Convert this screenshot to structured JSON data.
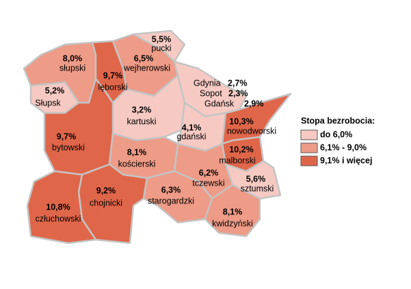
{
  "map": {
    "regions": [
      {
        "name": "pucki",
        "value": 5.5,
        "value_label": "5,5%"
      },
      {
        "name": "słupski",
        "value": 8.0,
        "value_label": "8,0%"
      },
      {
        "name": "wejherowski",
        "value": 6.5,
        "value_label": "6,5%"
      },
      {
        "name": "lęborski",
        "value": 9.7,
        "value_label": "9,7%"
      },
      {
        "name": "Słupsk",
        "value": 5.2,
        "value_label": "5,2%"
      },
      {
        "name": "Gdynia",
        "value": 2.7,
        "value_label": "2,7%"
      },
      {
        "name": "Sopot",
        "value": 2.3,
        "value_label": "2,3%"
      },
      {
        "name": "Gdańsk",
        "value": 2.9,
        "value_label": "2,9%"
      },
      {
        "name": "kartuski",
        "value": 3.2,
        "value_label": "3,2%"
      },
      {
        "name": "gdański",
        "value": 4.1,
        "value_label": "4,1%"
      },
      {
        "name": "nowodworski",
        "value": 10.3,
        "value_label": "10,3%"
      },
      {
        "name": "bytowski",
        "value": 9.7,
        "value_label": "9,7%"
      },
      {
        "name": "kościerski",
        "value": 8.1,
        "value_label": "8,1%"
      },
      {
        "name": "malborski",
        "value": 10.2,
        "value_label": "10,2%"
      },
      {
        "name": "tczewski",
        "value": 6.2,
        "value_label": "6,2%"
      },
      {
        "name": "sztumski",
        "value": 5.6,
        "value_label": "5,6%"
      },
      {
        "name": "chojnicki",
        "value": 9.2,
        "value_label": "9,2%"
      },
      {
        "name": "starogardzki",
        "value": 6.3,
        "value_label": "6,3%"
      },
      {
        "name": "człuchowski",
        "value": 10.8,
        "value_label": "10,8%"
      },
      {
        "name": "kwidzyński",
        "value": 8.1,
        "value_label": "8,1%"
      }
    ],
    "legend": {
      "title": "Stopa bezrobocia:",
      "items": [
        {
          "label": "do 6,0%",
          "color": "#f6cac3",
          "max": 6.0
        },
        {
          "label": "6,1% - 9,0%",
          "color": "#ee9b87",
          "min": 6.1,
          "max": 9.0
        },
        {
          "label": "9,1% i więcej",
          "color": "#e0664a",
          "min": 9.1
        }
      ]
    }
  }
}
